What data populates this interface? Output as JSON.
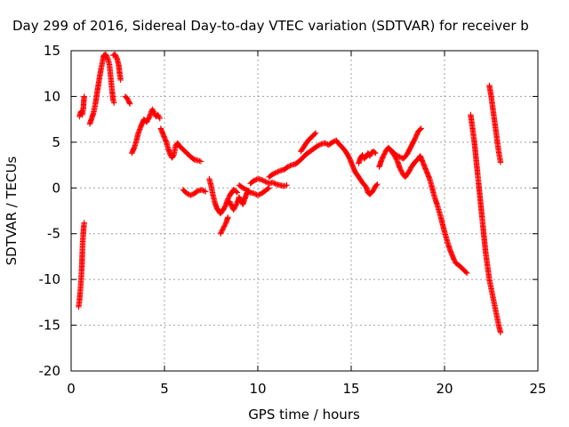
{
  "chart_data": {
    "type": "scatter",
    "title": "Day 299 of 2016, Sidereal Day-to-day VTEC variation (SDTVAR) for receiver b",
    "xlabel": "GPS time / hours",
    "ylabel": "SDTVAR / TECUs",
    "xlim": [
      0,
      25
    ],
    "ylim": [
      -20,
      15
    ],
    "xticks": [
      0,
      5,
      10,
      15,
      20,
      25
    ],
    "yticks": [
      -20,
      -15,
      -10,
      -5,
      0,
      5,
      10,
      15
    ],
    "xtick_labels": [
      "0",
      "5",
      "10",
      "15",
      "20",
      "25"
    ],
    "ytick_labels": [
      "-20",
      "-15",
      "-10",
      "-5",
      "0",
      "5",
      "10",
      "15"
    ],
    "grid": true,
    "marker": "plus",
    "color": "#ff0000",
    "series": [
      {
        "segments": [
          [
            [
              0.4,
              -13.0
            ],
            [
              0.45,
              -12.3
            ],
            [
              0.48,
              -11.5
            ],
            [
              0.52,
              -10.5
            ],
            [
              0.55,
              -9.5
            ],
            [
              0.58,
              -8.3
            ],
            [
              0.6,
              -7.0
            ],
            [
              0.62,
              -6.0
            ],
            [
              0.65,
              -5.0
            ],
            [
              0.68,
              -4.2
            ],
            [
              0.7,
              -3.8
            ]
          ],
          [
            [
              0.45,
              7.8
            ],
            [
              0.5,
              8.2
            ],
            [
              0.55,
              8.4
            ],
            [
              0.6,
              8.0
            ],
            [
              0.65,
              8.6
            ],
            [
              0.68,
              9.5
            ],
            [
              0.7,
              10.0
            ]
          ],
          [
            [
              1.0,
              7.0
            ],
            [
              1.1,
              7.6
            ],
            [
              1.2,
              8.2
            ],
            [
              1.3,
              9.2
            ],
            [
              1.4,
              10.5
            ],
            [
              1.5,
              11.8
            ],
            [
              1.6,
              13.0
            ],
            [
              1.7,
              14.0
            ],
            [
              1.75,
              14.5
            ],
            [
              1.85,
              14.6
            ],
            [
              1.95,
              14.2
            ],
            [
              2.05,
              13.5
            ],
            [
              2.1,
              12.5
            ],
            [
              2.15,
              11.5
            ],
            [
              2.2,
              10.5
            ],
            [
              2.25,
              9.6
            ],
            [
              2.3,
              9.3
            ]
          ],
          [
            [
              2.25,
              14.5
            ],
            [
              2.35,
              14.6
            ],
            [
              2.45,
              14.2
            ],
            [
              2.55,
              13.4
            ],
            [
              2.6,
              12.5
            ],
            [
              2.65,
              11.8
            ]
          ],
          [
            [
              2.9,
              10.0
            ],
            [
              3.0,
              9.8
            ],
            [
              3.1,
              9.4
            ],
            [
              3.15,
              9.2
            ]
          ],
          [
            [
              3.25,
              3.8
            ],
            [
              3.4,
              4.5
            ],
            [
              3.5,
              5.2
            ],
            [
              3.6,
              6.0
            ],
            [
              3.75,
              6.8
            ],
            [
              3.9,
              7.5
            ],
            [
              4.05,
              7.2
            ],
            [
              4.2,
              7.8
            ],
            [
              4.35,
              8.6
            ],
            [
              4.45,
              8.2
            ],
            [
              4.55,
              7.8
            ],
            [
              4.65,
              8.0
            ],
            [
              4.75,
              7.6
            ]
          ],
          [
            [
              4.8,
              6.5
            ],
            [
              4.9,
              6.0
            ],
            [
              5.0,
              5.5
            ],
            [
              5.1,
              5.0
            ],
            [
              5.2,
              4.3
            ],
            [
              5.3,
              3.7
            ],
            [
              5.4,
              3.3
            ],
            [
              5.5,
              3.6
            ],
            [
              5.6,
              4.6
            ],
            [
              5.7,
              4.9
            ],
            [
              5.8,
              4.6
            ],
            [
              6.0,
              4.2
            ],
            [
              6.2,
              3.8
            ],
            [
              6.4,
              3.4
            ],
            [
              6.6,
              3.1
            ],
            [
              6.8,
              3.0
            ],
            [
              6.95,
              2.9
            ]
          ],
          [
            [
              6.0,
              -0.2
            ],
            [
              6.2,
              -0.6
            ],
            [
              6.4,
              -0.8
            ],
            [
              6.6,
              -0.6
            ],
            [
              6.8,
              -0.3
            ],
            [
              7.0,
              -0.2
            ],
            [
              7.2,
              -0.4
            ]
          ],
          [
            [
              7.4,
              1.0
            ],
            [
              7.5,
              0.2
            ],
            [
              7.6,
              -0.8
            ],
            [
              7.7,
              -1.6
            ],
            [
              7.8,
              -2.2
            ],
            [
              7.9,
              -2.5
            ],
            [
              8.0,
              -2.8
            ],
            [
              8.1,
              -2.5
            ],
            [
              8.2,
              -2.2
            ],
            [
              8.3,
              -1.8
            ],
            [
              8.4,
              -1.2
            ],
            [
              8.5,
              -0.8
            ],
            [
              8.6,
              -0.5
            ],
            [
              8.7,
              -0.2
            ],
            [
              8.8,
              -0.3
            ],
            [
              8.9,
              -0.5
            ]
          ],
          [
            [
              8.0,
              -5.0
            ],
            [
              8.1,
              -4.6
            ],
            [
              8.2,
              -4.2
            ],
            [
              8.3,
              -3.8
            ],
            [
              8.4,
              -3.2
            ]
          ],
          [
            [
              8.5,
              -1.5
            ],
            [
              8.6,
              -2.0
            ],
            [
              8.7,
              -2.4
            ],
            [
              8.8,
              -2.0
            ],
            [
              8.9,
              -1.6
            ],
            [
              9.0,
              -1.0
            ],
            [
              9.1,
              -1.4
            ],
            [
              9.2,
              -1.8
            ],
            [
              9.3,
              -1.2
            ],
            [
              9.4,
              -0.6
            ],
            [
              9.5,
              -0.3
            ]
          ],
          [
            [
              9.0,
              0.3
            ],
            [
              9.2,
              0.0
            ],
            [
              9.4,
              -0.2
            ],
            [
              9.6,
              -0.5
            ],
            [
              9.8,
              -0.6
            ],
            [
              10.0,
              -0.8
            ],
            [
              10.2,
              -0.6
            ],
            [
              10.4,
              -0.3
            ],
            [
              10.6,
              0.0
            ]
          ],
          [
            [
              9.6,
              0.5
            ],
            [
              9.8,
              0.8
            ],
            [
              10.0,
              1.0
            ],
            [
              10.2,
              0.9
            ],
            [
              10.4,
              0.7
            ],
            [
              10.6,
              0.5
            ],
            [
              10.8,
              0.6
            ],
            [
              11.0,
              0.4
            ],
            [
              11.2,
              0.3
            ],
            [
              11.4,
              0.2
            ],
            [
              11.55,
              0.3
            ]
          ],
          [
            [
              10.6,
              1.2
            ],
            [
              10.8,
              1.5
            ],
            [
              11.0,
              1.7
            ],
            [
              11.2,
              1.9
            ],
            [
              11.4,
              2.0
            ],
            [
              11.6,
              2.3
            ],
            [
              11.8,
              2.5
            ],
            [
              12.0,
              2.6
            ],
            [
              12.2,
              2.9
            ],
            [
              12.4,
              3.3
            ],
            [
              12.6,
              3.7
            ],
            [
              12.8,
              4.0
            ],
            [
              13.0,
              4.3
            ],
            [
              13.2,
              4.6
            ],
            [
              13.4,
              4.8
            ],
            [
              13.6,
              4.9
            ],
            [
              13.8,
              4.7
            ],
            [
              14.0,
              5.0
            ],
            [
              14.2,
              5.2
            ],
            [
              14.3,
              4.9
            ],
            [
              14.5,
              4.5
            ],
            [
              14.7,
              4.0
            ],
            [
              14.9,
              3.3
            ],
            [
              15.0,
              2.8
            ],
            [
              15.1,
              2.3
            ],
            [
              15.2,
              1.8
            ],
            [
              15.3,
              1.5
            ],
            [
              15.4,
              1.2
            ],
            [
              15.6,
              0.6
            ],
            [
              15.8,
              0.1
            ],
            [
              15.9,
              -0.5
            ],
            [
              16.0,
              -0.7
            ],
            [
              16.1,
              -0.5
            ],
            [
              16.2,
              -0.2
            ],
            [
              16.3,
              0.2
            ],
            [
              16.4,
              0.4
            ]
          ],
          [
            [
              12.3,
              4.0
            ],
            [
              12.5,
              4.6
            ],
            [
              12.7,
              5.2
            ],
            [
              12.9,
              5.6
            ],
            [
              13.1,
              6.0
            ]
          ],
          [
            [
              15.4,
              2.7
            ],
            [
              15.5,
              3.3
            ],
            [
              15.6,
              3.6
            ],
            [
              15.7,
              3.2
            ],
            [
              15.8,
              3.4
            ],
            [
              15.9,
              3.8
            ],
            [
              16.0,
              3.5
            ],
            [
              16.1,
              3.9
            ],
            [
              16.2,
              4.0
            ],
            [
              16.3,
              3.8
            ]
          ],
          [
            [
              16.5,
              2.3
            ],
            [
              16.6,
              2.9
            ],
            [
              16.7,
              3.4
            ],
            [
              16.8,
              3.8
            ],
            [
              16.9,
              4.2
            ],
            [
              17.0,
              4.4
            ],
            [
              17.1,
              4.2
            ],
            [
              17.2,
              3.9
            ],
            [
              17.3,
              3.6
            ],
            [
              17.4,
              3.2
            ],
            [
              17.5,
              2.8
            ],
            [
              17.6,
              2.2
            ],
            [
              17.7,
              1.8
            ],
            [
              17.8,
              1.4
            ],
            [
              17.9,
              1.2
            ],
            [
              18.0,
              1.5
            ],
            [
              18.1,
              1.8
            ],
            [
              18.2,
              2.2
            ],
            [
              18.3,
              2.5
            ],
            [
              18.4,
              2.8
            ],
            [
              18.5,
              3.0
            ],
            [
              18.6,
              3.2
            ],
            [
              18.7,
              3.5
            ],
            [
              18.8,
              3.0
            ],
            [
              18.9,
              2.5
            ],
            [
              19.0,
              2.0
            ],
            [
              19.1,
              1.5
            ],
            [
              19.2,
              1.0
            ],
            [
              19.3,
              0.3
            ],
            [
              19.4,
              -0.5
            ],
            [
              19.5,
              -1.2
            ],
            [
              19.6,
              -1.8
            ],
            [
              19.7,
              -2.5
            ],
            [
              19.8,
              -3.2
            ],
            [
              19.9,
              -4.0
            ],
            [
              20.0,
              -4.8
            ],
            [
              20.1,
              -5.5
            ],
            [
              20.2,
              -6.2
            ],
            [
              20.3,
              -6.8
            ],
            [
              20.4,
              -7.3
            ],
            [
              20.5,
              -7.8
            ],
            [
              20.6,
              -8.2
            ],
            [
              20.8,
              -8.5
            ],
            [
              21.0,
              -8.9
            ],
            [
              21.2,
              -9.3
            ]
          ],
          [
            [
              17.2,
              4.0
            ],
            [
              17.4,
              3.6
            ],
            [
              17.6,
              3.4
            ],
            [
              17.8,
              3.2
            ],
            [
              18.0,
              3.7
            ],
            [
              18.2,
              4.5
            ],
            [
              18.4,
              5.3
            ],
            [
              18.6,
              6.2
            ],
            [
              18.75,
              6.5
            ]
          ],
          [
            [
              21.4,
              8.0
            ],
            [
              21.5,
              6.5
            ],
            [
              21.6,
              5.0
            ],
            [
              21.7,
              3.0
            ],
            [
              21.8,
              1.0
            ],
            [
              21.9,
              -1.0
            ],
            [
              22.0,
              -3.0
            ],
            [
              22.1,
              -5.0
            ],
            [
              22.2,
              -7.0
            ],
            [
              22.3,
              -8.5
            ],
            [
              22.4,
              -10.0
            ],
            [
              22.5,
              -11.0
            ],
            [
              22.6,
              -12.0
            ],
            [
              22.7,
              -13.0
            ],
            [
              22.8,
              -14.0
            ],
            [
              22.9,
              -15.0
            ],
            [
              23.0,
              -15.8
            ]
          ],
          [
            [
              22.4,
              11.2
            ],
            [
              22.5,
              10.0
            ],
            [
              22.6,
              8.5
            ],
            [
              22.7,
              7.0
            ],
            [
              22.8,
              5.5
            ],
            [
              22.9,
              4.0
            ],
            [
              23.0,
              2.8
            ]
          ]
        ]
      }
    ]
  }
}
